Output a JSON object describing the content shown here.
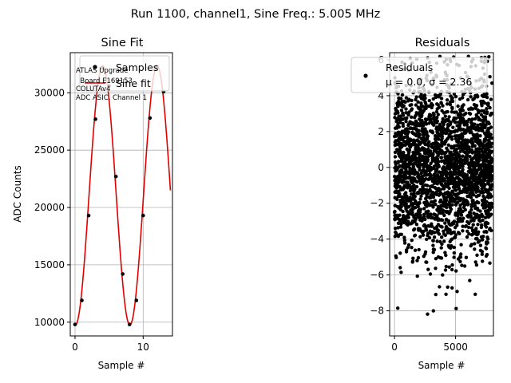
{
  "figure": {
    "suptitle": "Run 1100, channel1, Sine Freq.: 5.005 MHz"
  },
  "chart_data": [
    {
      "type": "line",
      "title": "Sine Fit",
      "xlabel": "Sample #",
      "ylabel": "ADC Counts",
      "xlim": [
        -0.7,
        14.3
      ],
      "ylim": [
        8800,
        33500
      ],
      "xticks": [
        0,
        10
      ],
      "yticks": [
        10000,
        15000,
        20000,
        25000,
        30000
      ],
      "grid": true,
      "legend": {
        "placement": "upper-right",
        "entries": [
          "Samples",
          "Sine fit"
        ]
      },
      "annotation": [
        "ATLAS Upgrade",
        "  Board E169153",
        "COLUTAv4",
        "ADC ASIC, Channel 1"
      ],
      "series": [
        {
          "name": "Samples",
          "style": "points",
          "color": "#000000",
          "x": [
            0,
            1,
            2,
            3,
            4,
            5,
            6,
            7,
            8,
            9,
            10,
            11,
            12,
            13
          ],
          "y": [
            9800,
            11900,
            19300,
            27700,
            32200,
            30600,
            22700,
            14200,
            9800,
            11900,
            19300,
            27800,
            32300,
            30100
          ]
        },
        {
          "name": "Sine fit",
          "style": "line",
          "color": "#e00000",
          "model": {
            "amplitude": 11300,
            "offset": 21050,
            "period": 8.0,
            "phase_sample": 4.05
          },
          "x_range": [
            0,
            14
          ]
        }
      ]
    },
    {
      "type": "scatter",
      "title": "Residuals",
      "xlabel": "Sample #",
      "ylabel": "",
      "xlim": [
        -400,
        8100
      ],
      "ylim": [
        -9.4,
        6.4
      ],
      "xticks": [
        0,
        5000
      ],
      "yticks": [
        -8,
        -6,
        -4,
        -2,
        0,
        2,
        4,
        6
      ],
      "grid": true,
      "legend": {
        "placement": "upper-right",
        "entries": [
          "Residuals",
          "μ = 0.0, σ = 2.36"
        ]
      },
      "series": [
        {
          "name": "Residuals",
          "color": "#000000",
          "n_points": 8000,
          "x_range": [
            0,
            7999
          ],
          "mean": 0.0,
          "std": 2.36,
          "y_range": [
            -8.6,
            6.2
          ]
        }
      ]
    }
  ]
}
